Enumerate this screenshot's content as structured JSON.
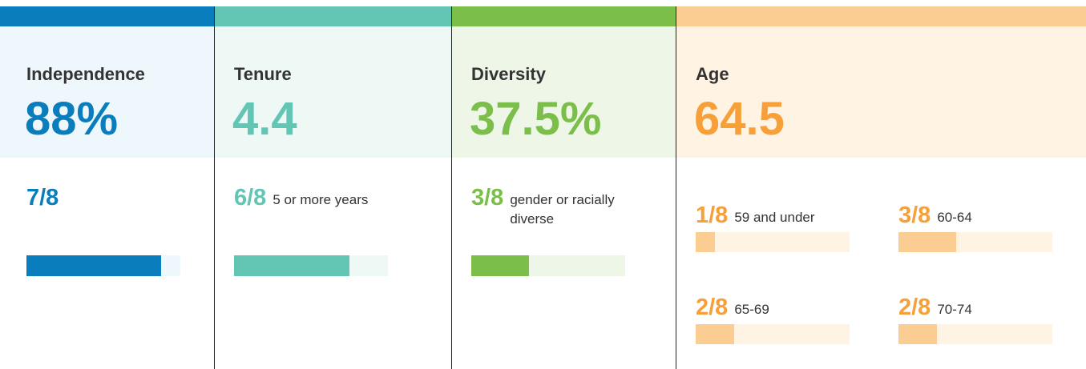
{
  "panels": [
    {
      "title": "Independence",
      "value": "88%",
      "color": "#0a7ebd",
      "accent": "#0a7ebd",
      "tint": "#eef8fc",
      "items": [
        {
          "fraction": "7/8"
        }
      ]
    },
    {
      "title": "Tenure",
      "value": "4.4",
      "color": "#63c5b4",
      "accent": "#63c5b4",
      "tint": "#eef8f4",
      "items": [
        {
          "fraction": "6/8",
          "text": "5 or more years"
        }
      ]
    },
    {
      "title": "Diversity",
      "value": "37.5%",
      "color": "#7bbf4a",
      "accent": "#7bbf4a",
      "tint": "#eef6e8",
      "items": [
        {
          "fraction": "3/8",
          "text": "gender or racially diverse"
        }
      ]
    },
    {
      "title": "Age",
      "value": "64.5",
      "color": "#f7a03a",
      "accent": "#fccd93",
      "tint": "#fff3e3",
      "items": [
        {
          "fraction": "1/8",
          "text": "59 and under"
        },
        {
          "fraction": "3/8",
          "text": "60-64"
        },
        {
          "fraction": "2/8",
          "text": "65-69"
        },
        {
          "fraction": "2/8",
          "text": "70-74"
        }
      ]
    }
  ]
}
